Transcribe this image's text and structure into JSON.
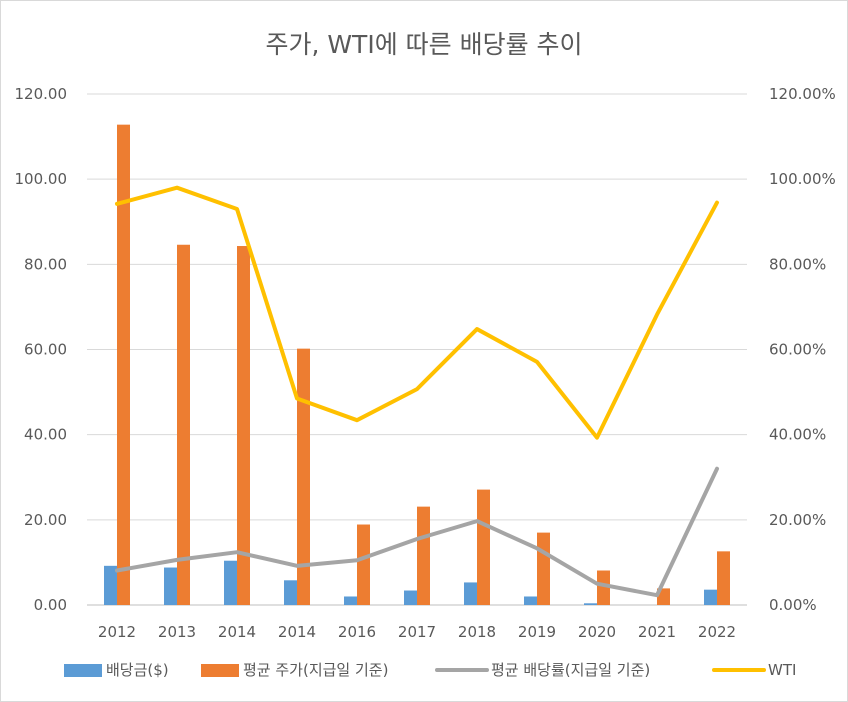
{
  "chart_data": {
    "type": "bar",
    "title": "주가, WTI에 따른 배당률 추이",
    "categories": [
      "2012",
      "2013",
      "2014",
      "2014",
      "2016",
      "2017",
      "2018",
      "2019",
      "2020",
      "2021",
      "2022"
    ],
    "left_axis": {
      "ylim": [
        0,
        120
      ],
      "ticks": [
        0,
        20,
        40,
        60,
        80,
        100,
        120
      ],
      "tick_labels": [
        "0.00",
        "20.00",
        "40.00",
        "60.00",
        "80.00",
        "100.00",
        "120.00"
      ]
    },
    "right_axis": {
      "ylim": [
        0,
        1.2
      ],
      "ticks": [
        0,
        0.2,
        0.4,
        0.6,
        0.8,
        1.0,
        1.2
      ],
      "tick_labels": [
        "0.00%",
        "20.00%",
        "40.00%",
        "60.00%",
        "80.00%",
        "100.00%",
        "120.00%"
      ]
    },
    "grid": true,
    "legend_position": "bottom",
    "series": [
      {
        "name": "배당금($)",
        "type": "bar",
        "axis": "left",
        "color": "#5B9BD5",
        "values": [
          9.2,
          8.8,
          10.4,
          5.8,
          2.0,
          3.4,
          5.3,
          2.0,
          0.4,
          0.0,
          3.6
        ]
      },
      {
        "name": "평균 주가(지급일 기준)",
        "type": "bar",
        "axis": "left",
        "color": "#ED7D31",
        "values": [
          112.8,
          84.6,
          84.3,
          60.2,
          18.9,
          23.1,
          27.1,
          17.0,
          8.1,
          3.9,
          12.6
        ]
      },
      {
        "name": "평균 배당률(지급일 기준)",
        "type": "line",
        "axis": "right",
        "color": "#A5A5A5",
        "values": [
          0.081,
          0.106,
          0.124,
          0.092,
          0.105,
          0.155,
          0.197,
          0.133,
          0.05,
          0.023,
          0.32
        ]
      },
      {
        "name": "WTI",
        "type": "line",
        "axis": "right",
        "color": "#FFC000",
        "values": [
          0.942,
          0.98,
          0.93,
          0.485,
          0.434,
          0.507,
          0.648,
          0.571,
          0.393,
          0.682,
          0.945
        ]
      }
    ]
  }
}
